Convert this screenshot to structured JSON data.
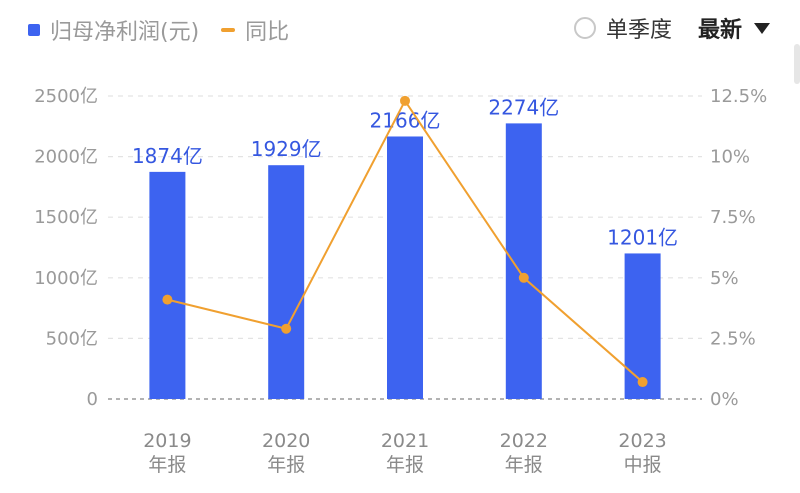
{
  "legend": {
    "bar_label": "归母净利润(元)",
    "line_label": "同比"
  },
  "controls": {
    "radio_label": "单季度",
    "radio_checked": false,
    "dropdown_label": "最新"
  },
  "colors": {
    "bar": "#3d63f0",
    "line": "#f0a030",
    "label": "#3557e0",
    "grid": "#e3e3e3",
    "baseline": "#9a9a9a"
  },
  "chart_data": {
    "type": "bar",
    "categories": [
      "2019\n年报",
      "2020\n年报",
      "2021\n年报",
      "2022\n年报",
      "2023\n中报"
    ],
    "series": [
      {
        "name": "归母净利润(元)",
        "type": "bar",
        "axis": "left",
        "values": [
          1874,
          1929,
          2166,
          2274,
          1201
        ],
        "labels": [
          "1874亿",
          "1929亿",
          "2166亿",
          "2274亿",
          "1201亿"
        ]
      },
      {
        "name": "同比",
        "type": "line",
        "axis": "right",
        "values": [
          4.1,
          2.9,
          12.3,
          5.0,
          0.7
        ]
      }
    ],
    "y_left": {
      "ticks": [
        "0",
        "500亿",
        "1000亿",
        "1500亿",
        "2000亿",
        "2500亿"
      ],
      "range": [
        0,
        2500
      ]
    },
    "y_right": {
      "ticks": [
        "0%",
        "2.5%",
        "5%",
        "7.5%",
        "10%",
        "12.5%"
      ],
      "range": [
        0,
        12.5
      ]
    },
    "grid": true,
    "legend_position": "top-left"
  }
}
